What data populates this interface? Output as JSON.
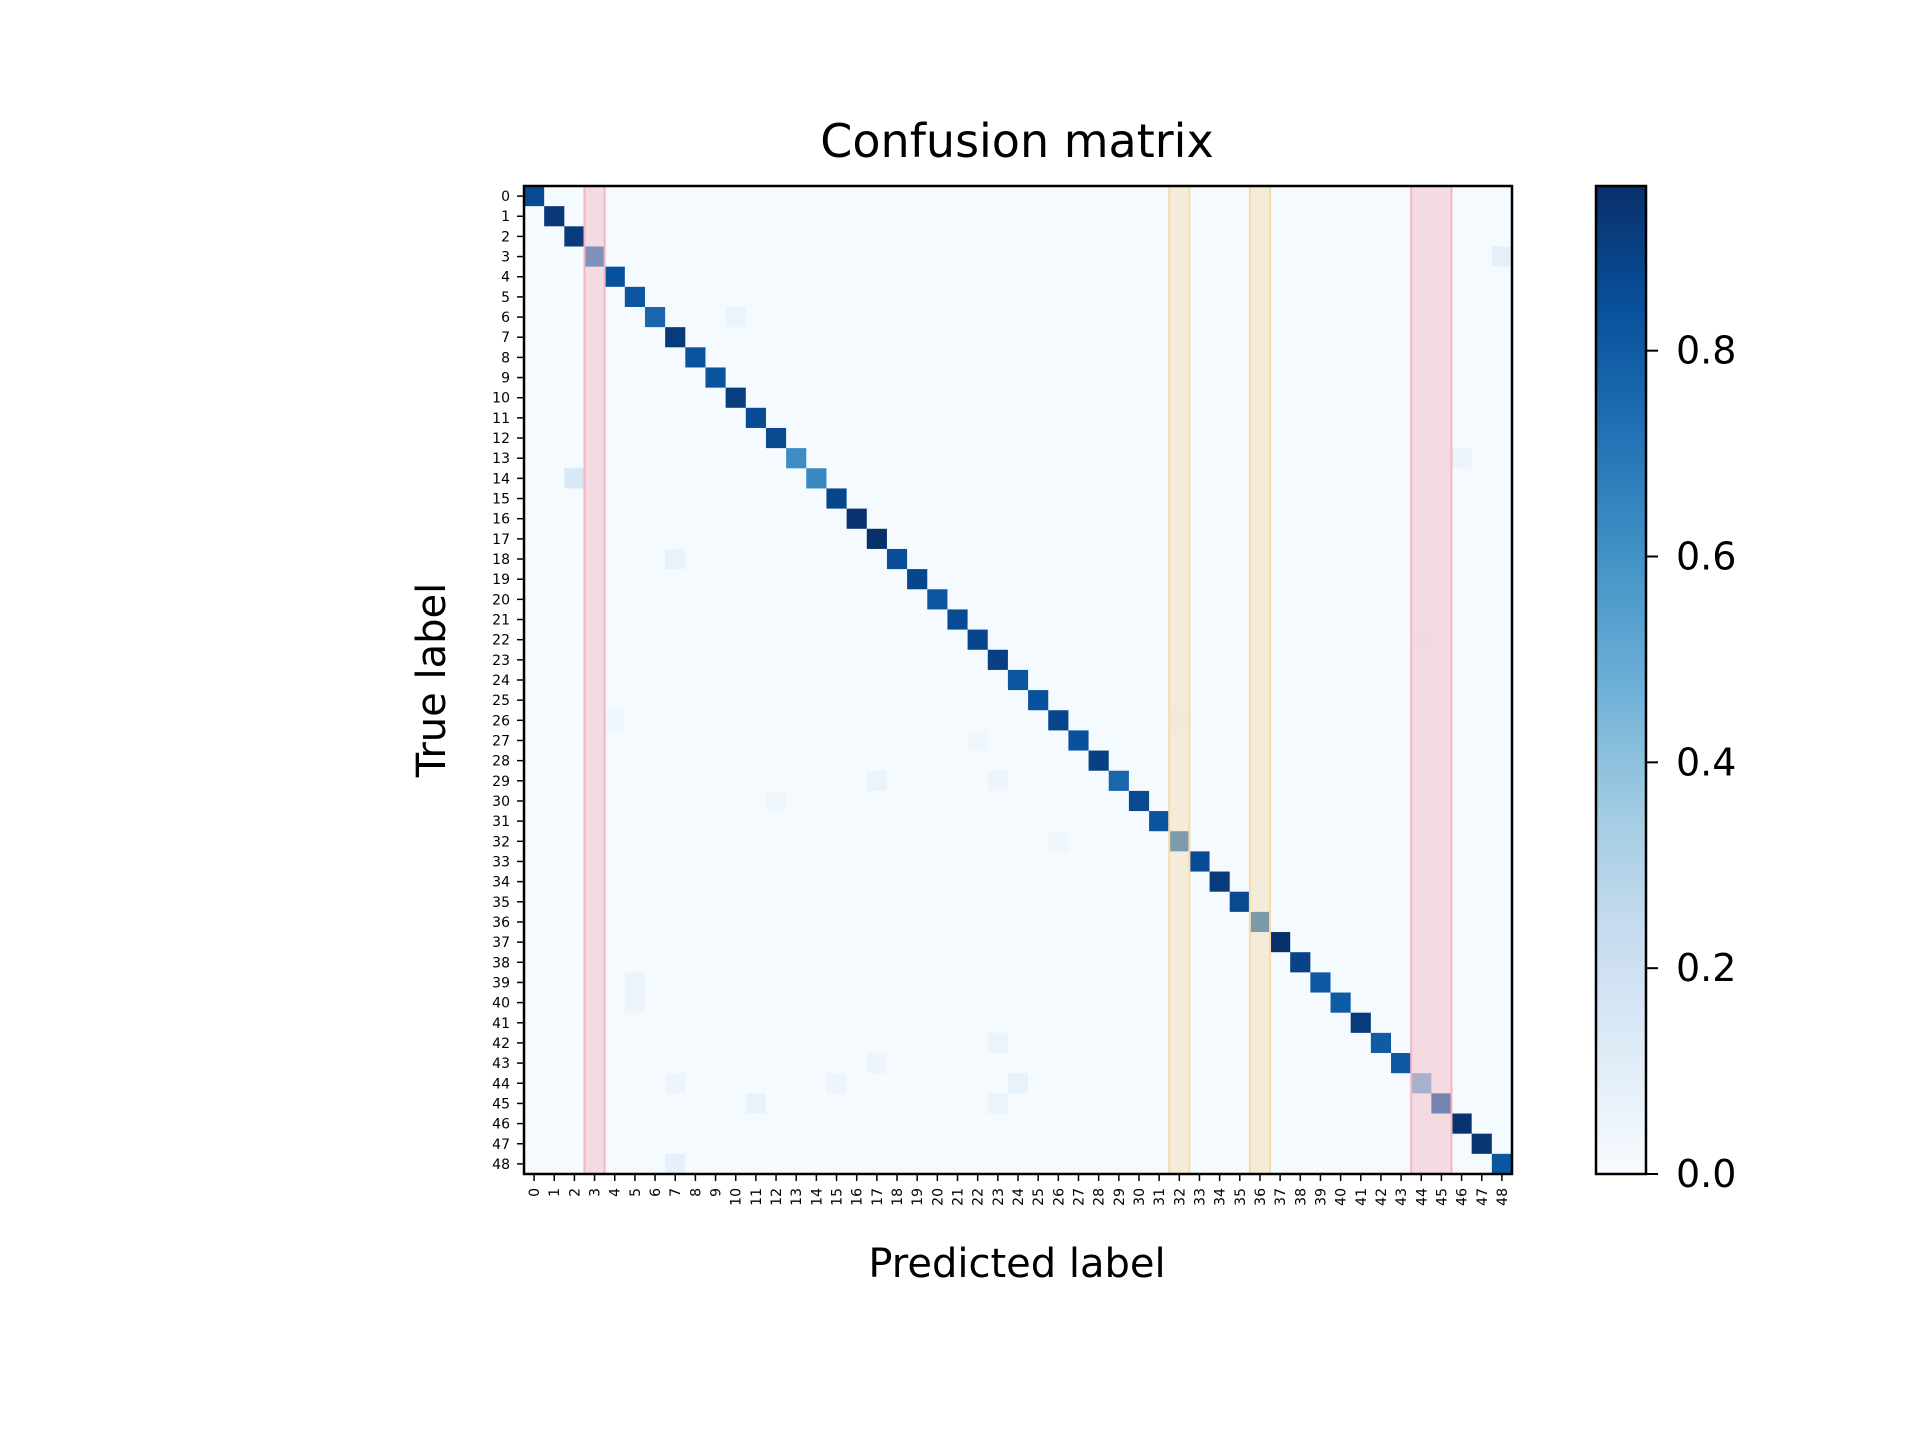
{
  "chart_data": {
    "type": "heatmap",
    "title": "Confusion matrix",
    "xlabel": "Predicted label",
    "ylabel": "True label",
    "x_categories": [
      "0",
      "1",
      "2",
      "3",
      "4",
      "5",
      "6",
      "7",
      "8",
      "9",
      "10",
      "11",
      "12",
      "13",
      "14",
      "15",
      "16",
      "17",
      "18",
      "19",
      "20",
      "21",
      "22",
      "23",
      "24",
      "25",
      "26",
      "27",
      "28",
      "29",
      "30",
      "31",
      "32",
      "33",
      "34",
      "35",
      "36",
      "37",
      "38",
      "39",
      "40",
      "41",
      "42",
      "43",
      "44",
      "45",
      "46",
      "47",
      "48"
    ],
    "y_categories": [
      "0",
      "1",
      "2",
      "3",
      "4",
      "5",
      "6",
      "7",
      "8",
      "9",
      "10",
      "11",
      "12",
      "13",
      "14",
      "15",
      "16",
      "17",
      "18",
      "19",
      "20",
      "21",
      "22",
      "23",
      "24",
      "25",
      "26",
      "27",
      "28",
      "29",
      "30",
      "31",
      "32",
      "33",
      "34",
      "35",
      "36",
      "37",
      "38",
      "39",
      "40",
      "41",
      "42",
      "43",
      "44",
      "45",
      "46",
      "47",
      "48"
    ],
    "diagonal_values": [
      0.86,
      0.93,
      0.92,
      0.72,
      0.84,
      0.82,
      0.76,
      0.92,
      0.83,
      0.83,
      0.91,
      0.86,
      0.87,
      0.62,
      0.64,
      0.88,
      0.95,
      0.96,
      0.85,
      0.88,
      0.82,
      0.86,
      0.88,
      0.9,
      0.82,
      0.84,
      0.88,
      0.84,
      0.9,
      0.76,
      0.87,
      0.83,
      0.75,
      0.86,
      0.92,
      0.87,
      0.76,
      0.96,
      0.89,
      0.81,
      0.8,
      0.92,
      0.8,
      0.81,
      0.48,
      0.8,
      0.95,
      0.94,
      0.82
    ],
    "off_diagonal_values": [
      {
        "row": 3,
        "col": 48,
        "value": 0.08
      },
      {
        "row": 6,
        "col": 10,
        "value": 0.06
      },
      {
        "row": 13,
        "col": 46,
        "value": 0.05
      },
      {
        "row": 14,
        "col": 2,
        "value": 0.15
      },
      {
        "row": 18,
        "col": 7,
        "value": 0.07
      },
      {
        "row": 22,
        "col": 44,
        "value": 0.04
      },
      {
        "row": 26,
        "col": 4,
        "value": 0.04
      },
      {
        "row": 26,
        "col": 32,
        "value": 0.04
      },
      {
        "row": 27,
        "col": 22,
        "value": 0.04
      },
      {
        "row": 29,
        "col": 17,
        "value": 0.06
      },
      {
        "row": 29,
        "col": 23,
        "value": 0.05
      },
      {
        "row": 30,
        "col": 12,
        "value": 0.04
      },
      {
        "row": 32,
        "col": 26,
        "value": 0.04
      },
      {
        "row": 39,
        "col": 5,
        "value": 0.06
      },
      {
        "row": 40,
        "col": 5,
        "value": 0.05
      },
      {
        "row": 42,
        "col": 23,
        "value": 0.06
      },
      {
        "row": 43,
        "col": 17,
        "value": 0.05
      },
      {
        "row": 44,
        "col": 7,
        "value": 0.05
      },
      {
        "row": 44,
        "col": 15,
        "value": 0.05
      },
      {
        "row": 44,
        "col": 24,
        "value": 0.07
      },
      {
        "row": 45,
        "col": 11,
        "value": 0.07
      },
      {
        "row": 45,
        "col": 23,
        "value": 0.06
      },
      {
        "row": 48,
        "col": 7,
        "value": 0.08
      }
    ],
    "colorbar": {
      "colormap": "Blues",
      "range": [
        0.0,
        0.96
      ],
      "ticks": [
        0.0,
        0.2,
        0.4,
        0.6,
        0.8
      ],
      "tick_labels": [
        "0.0",
        "0.2",
        "0.4",
        "0.6",
        "0.8"
      ]
    },
    "highlighted_columns": [
      {
        "start": 3,
        "end": 3,
        "color": "#f4b6c2"
      },
      {
        "start": 32,
        "end": 32,
        "color": "#f5dcaa"
      },
      {
        "start": 36,
        "end": 36,
        "color": "#f5dcaa"
      },
      {
        "start": 44,
        "end": 45,
        "color": "#f4b6c2"
      }
    ],
    "grid": false
  }
}
